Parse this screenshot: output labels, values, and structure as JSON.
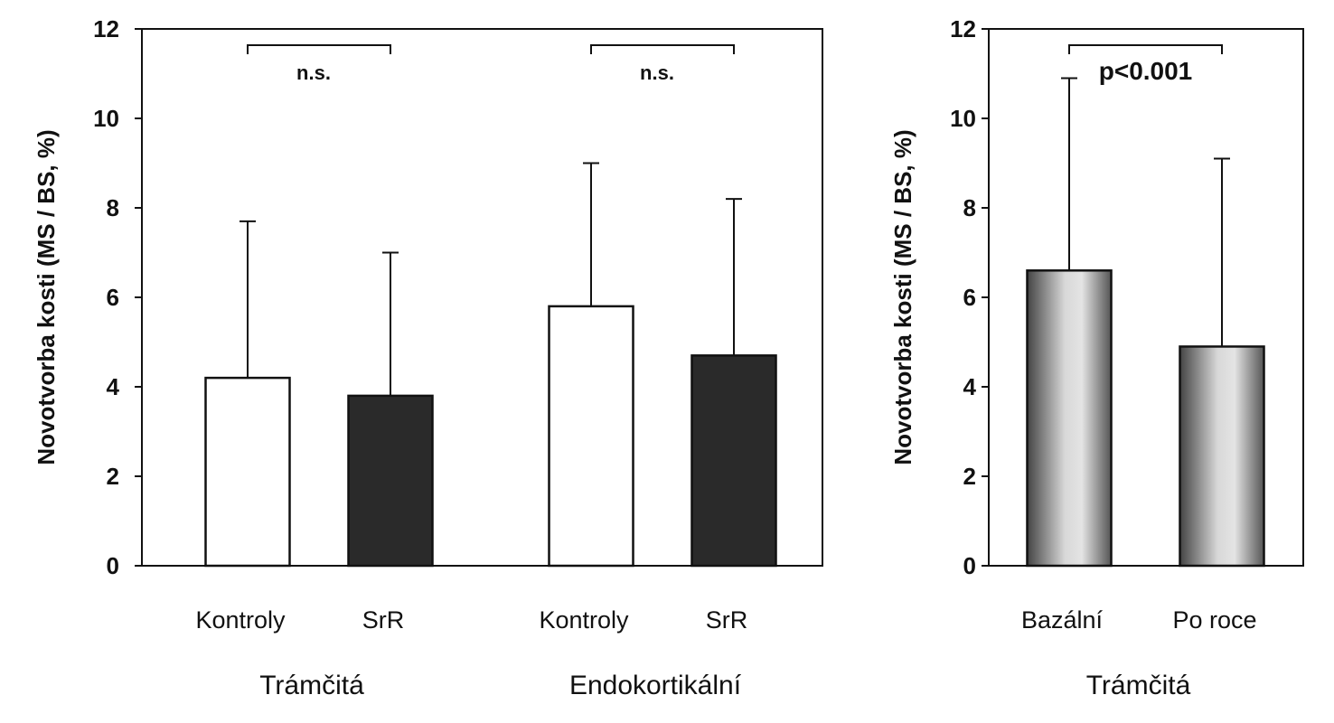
{
  "chart_data": [
    {
      "type": "bar",
      "ylabel": "Novotvorba kosti (MS / BS, %)",
      "ylim": [
        0,
        12
      ],
      "yticks": [
        "0",
        "2",
        "4",
        "6",
        "8",
        "10",
        "12"
      ],
      "groups": [
        {
          "name": "Trámčitá",
          "categories": [
            "Kontroly",
            "SrR"
          ],
          "values": [
            4.2,
            3.8
          ],
          "error_upper": [
            7.7,
            7.0
          ],
          "fills": [
            "#ffffff",
            "#2a2a2a"
          ],
          "annotation": "n.s."
        },
        {
          "name": "Endokortikální",
          "categories": [
            "Kontroly",
            "SrR"
          ],
          "values": [
            5.8,
            4.7
          ],
          "error_upper": [
            9.0,
            8.2
          ],
          "fills": [
            "#ffffff",
            "#2a2a2a"
          ],
          "annotation": "n.s."
        }
      ]
    },
    {
      "type": "bar",
      "ylabel": "Novotvorba kosti (MS / BS, %)",
      "ylim": [
        0,
        12
      ],
      "yticks": [
        "0",
        "2",
        "4",
        "6",
        "8",
        "10",
        "12"
      ],
      "groups": [
        {
          "name": "Trámčitá",
          "categories": [
            "Bazální",
            "Po roce"
          ],
          "values": [
            6.6,
            4.9
          ],
          "error_upper": [
            10.9,
            9.1
          ],
          "fills": [
            "gradient",
            "gradient"
          ],
          "annotation": "p<0.001"
        }
      ]
    }
  ]
}
